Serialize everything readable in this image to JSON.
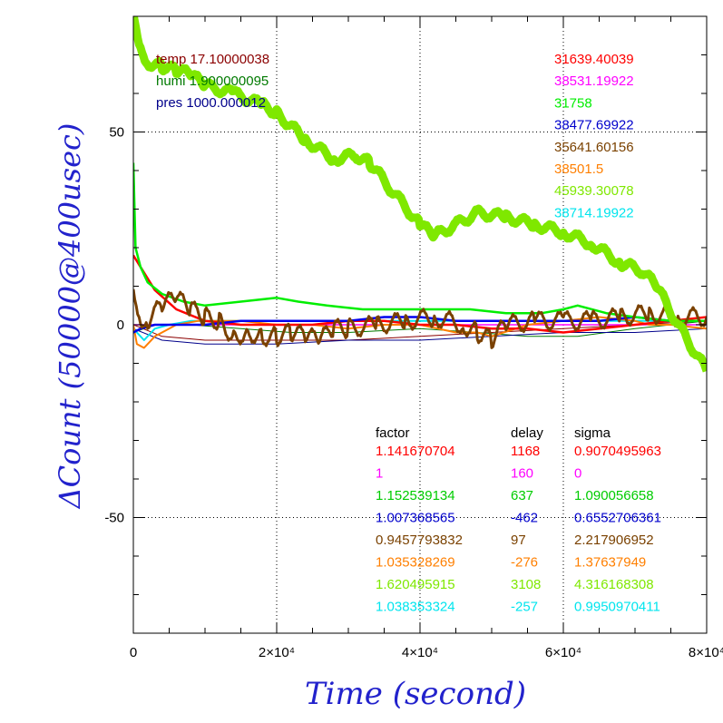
{
  "chart_data": {
    "type": "line",
    "xlabel": "Time (second)",
    "ylabel": "ΔCount (50000@400usec)",
    "xlim": [
      0,
      80000
    ],
    "ylim": [
      -80,
      80
    ],
    "x_ticks": [
      {
        "value": 0,
        "label": "0"
      },
      {
        "value": 20000,
        "label": "2×10⁴"
      },
      {
        "value": 40000,
        "label": "4×10⁴"
      },
      {
        "value": 60000,
        "label": "6×10⁴"
      },
      {
        "value": 80000,
        "label": "8×10⁴"
      }
    ],
    "y_ticks": [
      {
        "value": -50,
        "label": "-50"
      },
      {
        "value": 0,
        "label": "0"
      },
      {
        "value": 50,
        "label": "50"
      }
    ],
    "grid": "dotted at major ticks",
    "env_labels": [
      {
        "text": "temp 17.10000038",
        "color": "#8b0000"
      },
      {
        "text": "humi 1.900000095",
        "color": "#007a00"
      },
      {
        "text": "pres 1000.000012",
        "color": "#00008b"
      }
    ],
    "top_values": [
      {
        "text": "31639.40039",
        "color": "#ff0000"
      },
      {
        "text": "38531.19922",
        "color": "#ff00ff"
      },
      {
        "text": "31758",
        "color": "#00ee00"
      },
      {
        "text": "38477.69922",
        "color": "#0000cc"
      },
      {
        "text": "35641.60156",
        "color": "#7a4100"
      },
      {
        "text": "38501.5",
        "color": "#ff7f00"
      },
      {
        "text": "45939.30078",
        "color": "#7fe800"
      },
      {
        "text": "38714.19922",
        "color": "#00e5ee"
      }
    ],
    "table_headers": [
      "factor",
      "delay",
      "sigma"
    ],
    "table_rows": [
      {
        "factor": "1.141670704",
        "delay": "1168",
        "sigma": "0.9070495963",
        "color": "#ff0000"
      },
      {
        "factor": "1",
        "delay": "160",
        "sigma": "0",
        "color": "#ff00ff"
      },
      {
        "factor": "1.152539134",
        "delay": "637",
        "sigma": "1.090056658",
        "color": "#00cc00"
      },
      {
        "factor": "1.007368565",
        "delay": "-462",
        "sigma": "0.6552706361",
        "color": "#0000cc"
      },
      {
        "factor": "0.9457793832",
        "delay": "97",
        "sigma": "2.217906952",
        "color": "#7a4100"
      },
      {
        "factor": "1.035328269",
        "delay": "-276",
        "sigma": "1.37637949",
        "color": "#ff7f00"
      },
      {
        "factor": "1.620495915",
        "delay": "3108",
        "sigma": "4.316168308",
        "color": "#7fe800"
      },
      {
        "factor": "1.038353324",
        "delay": "-257",
        "sigma": "0.9950970411",
        "color": "#00e5ee"
      }
    ],
    "series": [
      {
        "color": "#8b0000",
        "stroke_width": 1,
        "x": [
          0,
          4000,
          10000,
          20000,
          30000,
          40000,
          50000,
          60000,
          70000,
          80000
        ],
        "y": [
          0,
          -3,
          -4,
          -4,
          -4,
          -3,
          -2,
          -1,
          0,
          1
        ]
      },
      {
        "color": "#007a00",
        "stroke_width": 1,
        "x": [
          0,
          3000,
          8000,
          15000,
          22000,
          30000,
          40000,
          48000,
          55000,
          62000,
          70000,
          80000
        ],
        "y": [
          -2,
          0,
          0,
          -1,
          -2,
          -2,
          -1,
          -2,
          -3,
          -3,
          -1,
          1
        ]
      },
      {
        "color": "#00008b",
        "stroke_width": 1,
        "x": [
          0,
          4000,
          10000,
          20000,
          30000,
          40000,
          50000,
          60000,
          70000,
          80000
        ],
        "y": [
          -1,
          -4,
          -5,
          -5,
          -4,
          -4,
          -3,
          -2,
          -2,
          -1
        ]
      },
      {
        "color": "#00e5ee",
        "stroke_width": 2,
        "x": [
          0,
          1500,
          3000,
          5000,
          8000,
          15000,
          25000,
          40000,
          55000,
          70000,
          80000
        ],
        "y": [
          -1,
          -4,
          -1,
          0,
          1,
          1,
          1,
          1,
          1,
          1,
          1
        ]
      },
      {
        "color": "#ff00ff",
        "stroke_width": 1.5,
        "x": [
          0,
          10000,
          20000,
          40000,
          60000,
          80000
        ],
        "y": [
          0,
          0,
          0,
          0,
          0,
          0
        ]
      },
      {
        "color": "#ff7f00",
        "stroke_width": 2,
        "x": [
          0,
          500,
          1500,
          3000,
          6000,
          9000,
          15000,
          20000,
          25000,
          30000,
          35000,
          40000,
          45000,
          48000,
          50000,
          55000,
          60000,
          65000,
          70000,
          72000,
          75000,
          80000
        ],
        "y": [
          0,
          -5,
          -6,
          -3,
          0,
          1,
          1,
          0,
          0,
          -1,
          0,
          0,
          -2,
          -2,
          -3,
          0,
          1,
          2,
          1,
          0,
          0,
          -1
        ]
      },
      {
        "color": "#ff0000",
        "stroke_width": 2.5,
        "x": [
          0,
          1000,
          3000,
          6000,
          10000,
          15000,
          20000,
          25000,
          30000,
          35000,
          40000,
          45000,
          50000,
          55000,
          60000,
          65000,
          70000,
          75000,
          80000
        ],
        "y": [
          18,
          15,
          9,
          4,
          1,
          0,
          0,
          0,
          1,
          1,
          0,
          0,
          -1,
          -1,
          -2,
          -1,
          0,
          1,
          2
        ]
      },
      {
        "color": "#0000ee",
        "stroke_width": 2.5,
        "x": [
          0,
          1000,
          3000,
          6000,
          10000,
          15000,
          20000,
          25000,
          30000,
          35000,
          40000,
          45000,
          50000,
          55000,
          60000,
          65000,
          70000,
          75000,
          80000
        ],
        "y": [
          -2,
          -1,
          0,
          0,
          0,
          1,
          1,
          1,
          1,
          2,
          2,
          1,
          1,
          1,
          1,
          1,
          2,
          1,
          1
        ]
      },
      {
        "color": "#00ee00",
        "stroke_width": 2.5,
        "x": [
          0,
          300,
          1000,
          2000,
          4000,
          7000,
          10000,
          15000,
          20000,
          23000,
          27000,
          32000,
          37000,
          42000,
          47000,
          52000,
          57000,
          60000,
          62000,
          66000,
          70000,
          75000,
          80000
        ],
        "y": [
          42,
          20,
          15,
          11,
          8,
          6,
          5,
          6,
          7,
          6,
          5,
          4,
          4,
          4,
          4,
          3,
          3,
          4,
          5,
          3,
          2,
          1,
          1
        ]
      },
      {
        "color": "#7a4100",
        "stroke_width": 3,
        "noise": 2.5,
        "x": [
          0,
          1000,
          2000,
          4000,
          6000,
          8000,
          10000,
          12000,
          14000,
          16000,
          18000,
          20000,
          22000,
          24000,
          26000,
          28000,
          30000,
          34000,
          38000,
          42000,
          46000,
          48000,
          50000,
          52000,
          56000,
          60000,
          64000,
          68000,
          72000,
          76000,
          80000
        ],
        "y": [
          10,
          2,
          1,
          5,
          7,
          4,
          2,
          1,
          -3,
          -2,
          -3,
          -3,
          -2,
          -3,
          -4,
          -1,
          -1,
          0,
          1,
          2,
          0,
          -2,
          -4,
          0,
          1,
          1,
          1,
          2,
          3,
          2,
          2
        ]
      },
      {
        "color": "#7fe800",
        "stroke_width": 9,
        "noise": 1.2,
        "x": [
          0,
          1000,
          2000,
          4000,
          6000,
          8000,
          10000,
          14000,
          18000,
          20000,
          24000,
          28000,
          31000,
          33000,
          36000,
          40000,
          42000,
          45000,
          48000,
          52000,
          56000,
          60000,
          64000,
          68000,
          71000,
          73000,
          76000,
          80000
        ],
        "y": [
          80,
          72,
          68,
          67,
          66,
          65,
          62,
          60,
          57,
          55,
          48,
          43,
          44,
          42,
          35,
          26,
          23,
          26,
          29,
          28,
          26,
          24,
          21,
          16,
          14,
          10,
          0,
          -12
        ]
      }
    ]
  }
}
